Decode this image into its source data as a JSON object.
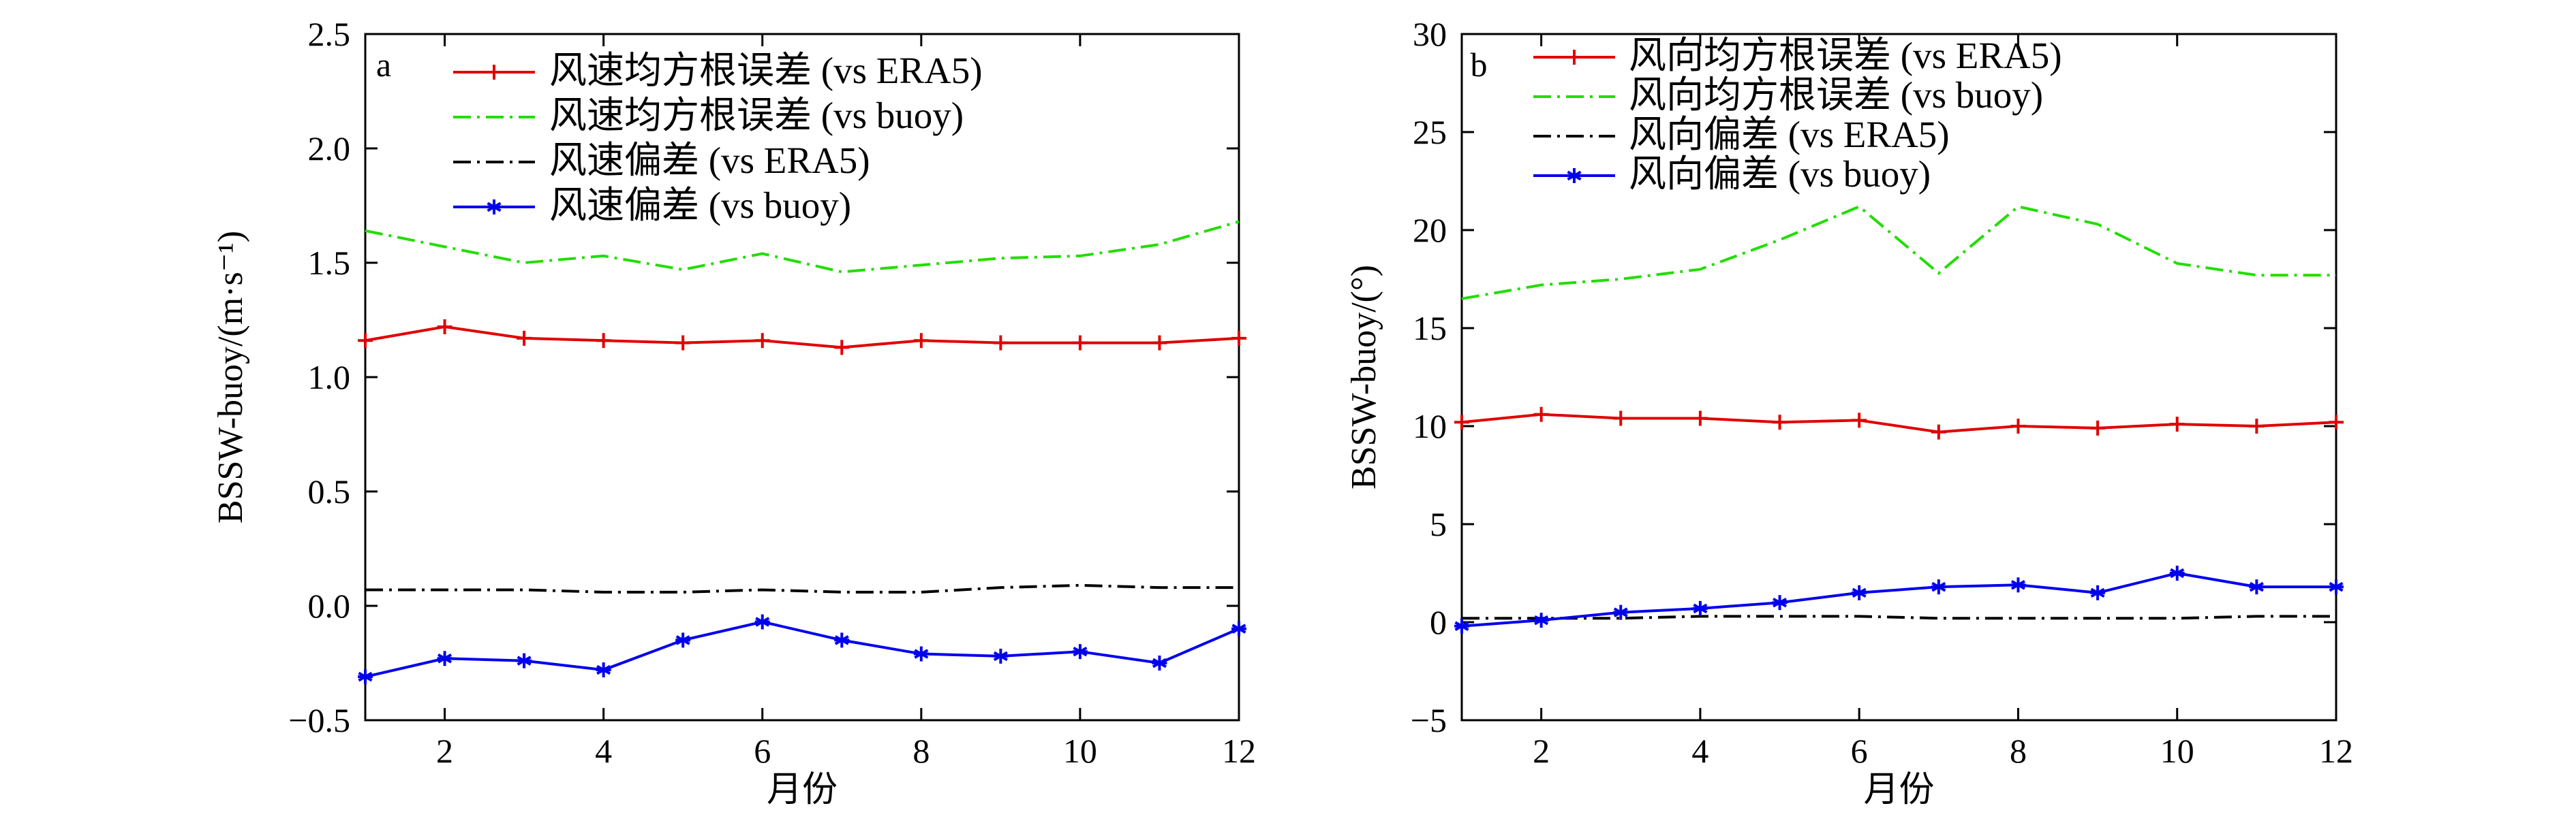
{
  "figure": {
    "panels": [
      "a",
      "b"
    ]
  },
  "chart_data": [
    {
      "type": "line",
      "panel_label": "a",
      "xlabel": "月份",
      "ylabel": "BSSW-buoy/(m·s⁻¹)",
      "xlim": [
        1,
        12
      ],
      "ylim": [
        -0.5,
        2.5
      ],
      "xticks": [
        2,
        4,
        6,
        8,
        10,
        12
      ],
      "yticks": [
        -0.5,
        0.0,
        0.5,
        1.0,
        1.5,
        2.0,
        2.5
      ],
      "ytick_labels": [
        "−0.5",
        "0.0",
        "0.5",
        "1.0",
        "1.5",
        "2.0",
        "2.5"
      ],
      "legend_position": "top-center",
      "x": [
        1,
        2,
        3,
        4,
        5,
        6,
        7,
        8,
        9,
        10,
        11,
        12
      ],
      "series": [
        {
          "name": "风速均方根误差 (vs ERA5)",
          "color": "#e00000",
          "linestyle": "solid",
          "marker": "plus",
          "values": [
            1.16,
            1.22,
            1.17,
            1.16,
            1.15,
            1.16,
            1.13,
            1.16,
            1.15,
            1.15,
            1.15,
            1.17
          ]
        },
        {
          "name": "风速均方根误差 (vs buoy)",
          "color": "#22dd00",
          "linestyle": "dashdot",
          "marker": "none",
          "values": [
            1.64,
            1.57,
            1.5,
            1.53,
            1.47,
            1.54,
            1.46,
            1.49,
            1.52,
            1.53,
            1.58,
            1.68
          ]
        },
        {
          "name": "风速偏差 (vs ERA5)",
          "color": "#000000",
          "linestyle": "dashdot",
          "marker": "none",
          "values": [
            0.07,
            0.07,
            0.07,
            0.06,
            0.06,
            0.07,
            0.06,
            0.06,
            0.08,
            0.09,
            0.08,
            0.08
          ]
        },
        {
          "name": "风速偏差 (vs buoy)",
          "color": "#0000ee",
          "linestyle": "solid",
          "marker": "asterisk",
          "values": [
            -0.31,
            -0.23,
            -0.24,
            -0.28,
            -0.15,
            -0.07,
            -0.15,
            -0.21,
            -0.22,
            -0.2,
            -0.25,
            -0.1
          ]
        }
      ]
    },
    {
      "type": "line",
      "panel_label": "b",
      "xlabel": "月份",
      "ylabel": "BSSW-buoy/(°)",
      "xlim": [
        1,
        12
      ],
      "ylim": [
        -5,
        30
      ],
      "xticks": [
        2,
        4,
        6,
        8,
        10,
        12
      ],
      "yticks": [
        -5,
        0,
        5,
        10,
        15,
        20,
        25,
        30
      ],
      "ytick_labels": [
        "−5",
        "0",
        "5",
        "10",
        "15",
        "20",
        "25",
        "30"
      ],
      "legend_position": "top-left",
      "x": [
        1,
        2,
        3,
        4,
        5,
        6,
        7,
        8,
        9,
        10,
        11,
        12
      ],
      "series": [
        {
          "name": "风向均方根误差 (vs ERA5)",
          "color": "#e00000",
          "linestyle": "solid",
          "marker": "plus",
          "values": [
            10.2,
            10.6,
            10.4,
            10.4,
            10.2,
            10.3,
            9.7,
            10.0,
            9.9,
            10.1,
            10.0,
            10.2
          ]
        },
        {
          "name": "风向均方根误差 (vs buoy)",
          "color": "#22dd00",
          "linestyle": "dashdot",
          "marker": "none",
          "values": [
            16.5,
            17.2,
            17.5,
            18.0,
            19.5,
            21.2,
            17.8,
            21.2,
            20.3,
            18.3,
            17.7,
            17.7
          ]
        },
        {
          "name": "风向偏差 (vs ERA5)",
          "color": "#000000",
          "linestyle": "dashdot",
          "marker": "none",
          "values": [
            0.2,
            0.2,
            0.2,
            0.3,
            0.3,
            0.3,
            0.2,
            0.2,
            0.2,
            0.2,
            0.3,
            0.3
          ]
        },
        {
          "name": "风向偏差 (vs buoy)",
          "color": "#0000ee",
          "linestyle": "solid",
          "marker": "asterisk",
          "values": [
            -0.2,
            0.1,
            0.5,
            0.7,
            1.0,
            1.5,
            1.8,
            1.9,
            1.5,
            2.5,
            1.8,
            1.8
          ]
        }
      ]
    }
  ]
}
